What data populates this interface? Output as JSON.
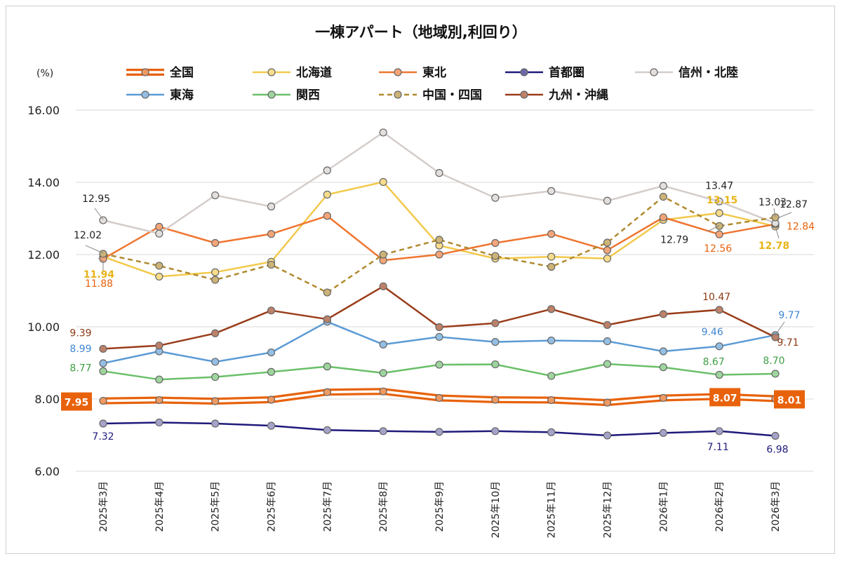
{
  "chart_data": {
    "type": "line",
    "title": "一棟アパート（地域別,利回り）",
    "ylabel": "(%)",
    "xlabel": "",
    "ylim": [
      6,
      16
    ],
    "yticks": [
      "6.00",
      "8.00",
      "10.00",
      "12.00",
      "14.00",
      "16.00"
    ],
    "categories": [
      "2025年3月",
      "2025年4月",
      "2025年5月",
      "2025年6月",
      "2025年7月",
      "2025年8月",
      "2025年9月",
      "2025年10月",
      "2025年11月",
      "2025年12月",
      "2026年1月",
      "2026年2月",
      "2026年3月"
    ],
    "series": [
      {
        "name": "全国",
        "color": "#e8620c",
        "style": "double",
        "values": [
          7.95,
          7.97,
          7.94,
          7.98,
          8.19,
          8.21,
          8.03,
          7.98,
          7.97,
          7.9,
          8.03,
          8.07,
          8.01
        ],
        "labels": [
          {
            "i": 0,
            "text": "7.95"
          },
          {
            "i": 11,
            "text": "8.07"
          },
          {
            "i": 12,
            "text": "8.01"
          }
        ]
      },
      {
        "name": "北海道",
        "color": "#f2c94c",
        "style": "solid",
        "values": [
          11.94,
          11.39,
          11.51,
          11.8,
          13.66,
          14.01,
          12.25,
          11.89,
          11.94,
          11.89,
          12.96,
          13.15,
          12.78
        ],
        "labels": [
          {
            "i": 0,
            "text": "11.94"
          },
          {
            "i": 11,
            "text": "13.15"
          },
          {
            "i": 12,
            "text": "12.78"
          }
        ]
      },
      {
        "name": "東北",
        "color": "#ef7530",
        "style": "solid",
        "values": [
          11.88,
          12.77,
          12.32,
          12.57,
          13.07,
          11.84,
          12.0,
          12.32,
          12.57,
          12.12,
          13.03,
          12.56,
          12.84
        ],
        "labels": [
          {
            "i": 0,
            "text": "11.88"
          },
          {
            "i": 11,
            "text": "12.56"
          },
          {
            "i": 12,
            "text": "12.84"
          }
        ]
      },
      {
        "name": "首都圏",
        "color": "#1f1a7a",
        "style": "solid",
        "values": [
          7.32,
          7.35,
          7.32,
          7.26,
          7.14,
          7.11,
          7.09,
          7.11,
          7.08,
          6.99,
          7.06,
          7.11,
          6.98
        ],
        "labels": [
          {
            "i": 0,
            "text": "7.32"
          },
          {
            "i": 11,
            "text": "7.11"
          },
          {
            "i": 12,
            "text": "6.98"
          }
        ]
      },
      {
        "name": "信州・北陸",
        "color": "#d4cdca",
        "style": "solid",
        "values": [
          12.95,
          12.58,
          13.64,
          13.33,
          14.33,
          15.38,
          14.26,
          13.57,
          13.76,
          13.49,
          13.9,
          13.47,
          12.87
        ],
        "labels": [
          {
            "i": 0,
            "text": "12.95"
          },
          {
            "i": 11,
            "text": "13.47"
          },
          {
            "i": 12,
            "text": "12.87"
          }
        ]
      },
      {
        "name": "東海",
        "color": "#5b9bd5",
        "style": "solid",
        "values": [
          8.99,
          9.32,
          9.03,
          9.29,
          10.14,
          9.51,
          9.72,
          9.58,
          9.62,
          9.6,
          9.32,
          9.46,
          9.77
        ],
        "labels": [
          {
            "i": 0,
            "text": "8.99"
          },
          {
            "i": 11,
            "text": "9.46"
          },
          {
            "i": 12,
            "text": "9.77"
          }
        ]
      },
      {
        "name": "関西",
        "color": "#6abf69",
        "style": "solid",
        "values": [
          8.77,
          8.54,
          8.61,
          8.75,
          8.9,
          8.72,
          8.95,
          8.96,
          8.64,
          8.97,
          8.88,
          8.67,
          8.7
        ],
        "labels": [
          {
            "i": 0,
            "text": "8.77"
          },
          {
            "i": 11,
            "text": "8.67"
          },
          {
            "i": 12,
            "text": "8.70"
          }
        ]
      },
      {
        "name": "中国・四国",
        "color": "#b08a2e",
        "style": "dashed",
        "values": [
          12.02,
          11.69,
          11.3,
          11.72,
          10.95,
          12.0,
          12.41,
          11.96,
          11.66,
          12.33,
          13.6,
          12.79,
          13.03
        ],
        "labels": [
          {
            "i": 0,
            "text": "12.02"
          },
          {
            "i": 11,
            "text": "12.79"
          },
          {
            "i": 12,
            "text": "13.03"
          }
        ]
      },
      {
        "name": "九州・沖縄",
        "color": "#9a3d1a",
        "style": "solid",
        "values": [
          9.39,
          9.48,
          9.82,
          10.45,
          10.21,
          11.12,
          9.99,
          10.1,
          10.49,
          10.05,
          10.35,
          10.47,
          9.71
        ],
        "labels": [
          {
            "i": 0,
            "text": "9.39"
          },
          {
            "i": 11,
            "text": "10.47"
          },
          {
            "i": 12,
            "text": "9.71"
          }
        ]
      }
    ]
  }
}
